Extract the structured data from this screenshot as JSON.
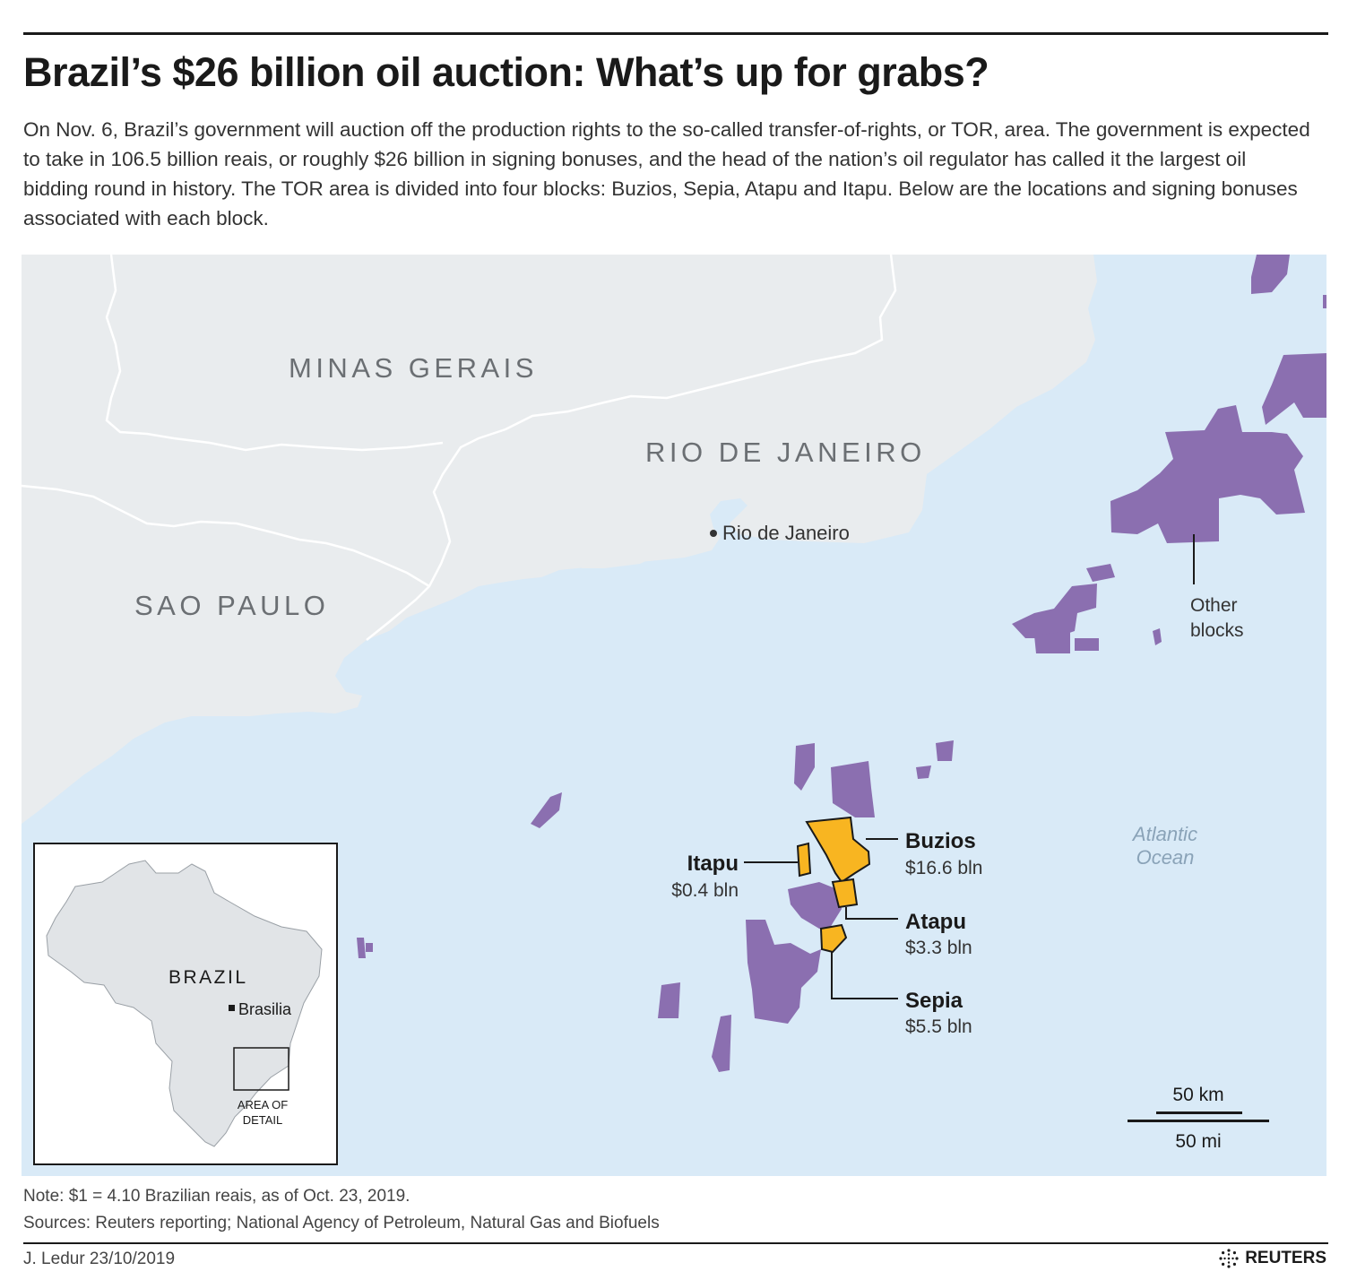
{
  "header": {
    "title": "Brazil’s $26 billion oil auction: What’s up for grabs?",
    "intro": "On Nov. 6, Brazil’s government will auction off the production rights to the so-called transfer-of-rights, or TOR, area. The government is expected to take in 106.5 billion reais, or roughly $26 billion in signing bonuses, and the head of the nation’s oil regulator has called it the largest oil bidding round in history. The TOR area is divided into four blocks: Buzios, Sepia, Atapu and Itapu. Below are the locations and signing bonuses associated with each block."
  },
  "map": {
    "colors": {
      "land": "#e9ecee",
      "ocean": "#d9eaf7",
      "state_border": "#ffffff",
      "other_blocks": "#8b6fb0",
      "tor_blocks": "#f8b521",
      "tor_outline": "#1a1a1a"
    },
    "states": [
      "MINAS GERAIS",
      "RIO DE JANEIRO",
      "SAO PAULO"
    ],
    "city": "Rio de Janeiro",
    "ocean_label": [
      "Atlantic",
      "Ocean"
    ],
    "other_blocks_label": [
      "Other",
      "blocks"
    ],
    "tor_blocks": [
      {
        "name": "Buzios",
        "bonus": "$16.6 bln"
      },
      {
        "name": "Itapu",
        "bonus": "$0.4 bln"
      },
      {
        "name": "Atapu",
        "bonus": "$3.3 bln"
      },
      {
        "name": "Sepia",
        "bonus": "$5.5 bln"
      }
    ],
    "scale": {
      "km": "50 km",
      "mi": "50 mi"
    },
    "inset": {
      "country": "BRAZIL",
      "capital": "Brasilia",
      "area_label": [
        "AREA OF",
        "DETAIL"
      ]
    }
  },
  "footer": {
    "note": "Note: $1 = 4.10 Brazilian reais, as of Oct. 23, 2019.",
    "sources": "Sources: Reuters reporting; National Agency of Petroleum, Natural Gas and Biofuels",
    "credit": "J. Ledur 23/10/2019",
    "brand": "REUTERS"
  }
}
